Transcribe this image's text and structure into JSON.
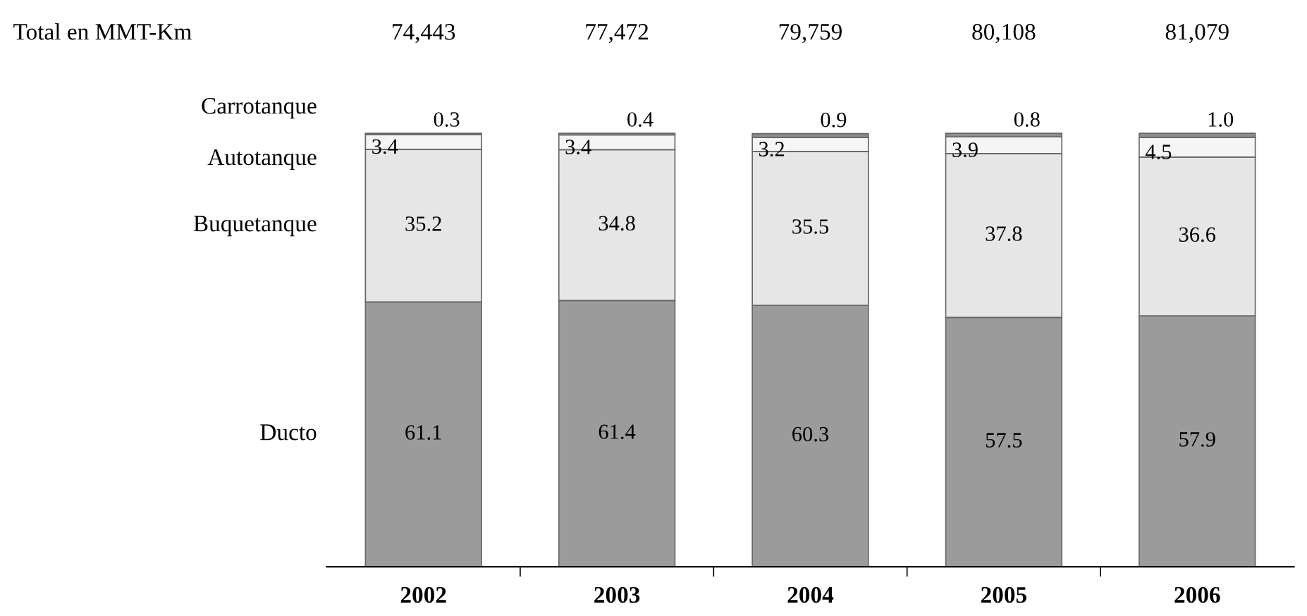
{
  "chart_data": {
    "type": "bar",
    "stacked": true,
    "categories": [
      "2002",
      "2003",
      "2004",
      "2005",
      "2006"
    ],
    "series": [
      {
        "name": "Ducto",
        "color": "#9b9b9b",
        "values": [
          61.1,
          61.4,
          60.3,
          57.5,
          57.9
        ],
        "value_labels": [
          "61.1",
          "61.4",
          "60.3",
          "57.5",
          "57.9"
        ]
      },
      {
        "name": "Buquetanque",
        "color": "#e6e6e6",
        "values": [
          35.2,
          34.8,
          35.5,
          37.8,
          36.6
        ],
        "value_labels": [
          "35.2",
          "34.8",
          "35.5",
          "37.8",
          "36.6"
        ]
      },
      {
        "name": "Autotanque",
        "color": "#f5f5f5",
        "values": [
          3.4,
          3.4,
          3.2,
          3.9,
          4.5
        ],
        "value_labels": [
          "3.4",
          "3.4",
          "3.2",
          "3.9",
          "4.5"
        ]
      },
      {
        "name": "Carrotanque",
        "color": "#8c8c8c",
        "values": [
          0.3,
          0.4,
          0.9,
          0.8,
          1.0
        ],
        "value_labels": [
          "0.3",
          "0.4",
          "0.9",
          "0.8",
          "1.0"
        ]
      }
    ],
    "annotations": [
      "Total en MMT-Km",
      "74,443",
      "77,472",
      "79,759",
      "80,108",
      "81,079"
    ],
    "legend": false,
    "grid": false
  }
}
